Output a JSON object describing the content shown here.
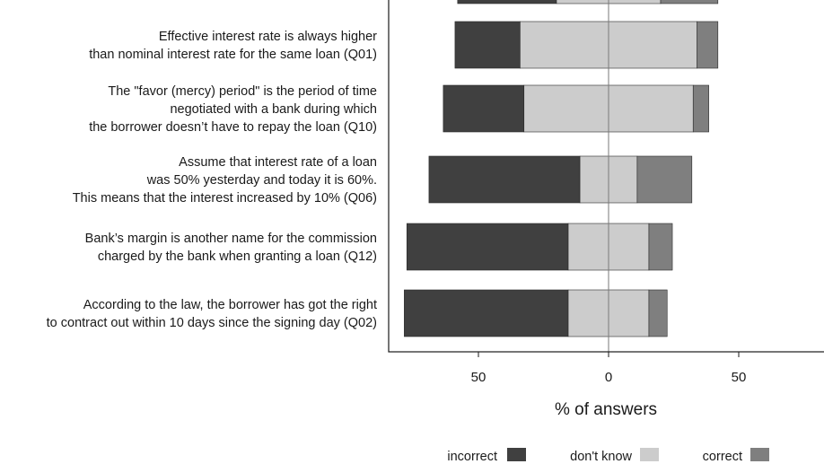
{
  "chart_data": {
    "type": "bar",
    "orientation": "horizontal",
    "stacked": "diverging",
    "xlabel": "% of answers",
    "xticks": [
      50,
      0,
      50
    ],
    "xlim": [
      -85,
      85
    ],
    "grid": false,
    "legend_position": "bottom-right",
    "series_order": [
      "incorrect",
      "dont_know",
      "correct"
    ],
    "series": {
      "incorrect": {
        "name": "incorrect",
        "color": "#404040"
      },
      "dont_know": {
        "name": "don't know",
        "color": "#cccccc"
      },
      "correct": {
        "name": "correct",
        "color": "#7f7f7f"
      }
    },
    "questions": [
      {
        "lines": [],
        "incorrect": 38,
        "dont_know": 40,
        "correct": 22
      },
      {
        "lines": [
          "Effective interest rate is always higher",
          "than nominal interest rate for the same loan (Q01)"
        ],
        "incorrect": 25,
        "dont_know": 68,
        "correct": 8
      },
      {
        "lines": [
          "The \"favor (mercy) period\" is the period of time",
          "negotiated with a bank during which",
          "the borrower doesn’t have to repay the loan (Q10)"
        ],
        "incorrect": 31,
        "dont_know": 65,
        "correct": 6
      },
      {
        "lines": [
          "Assume that interest rate of a loan",
          "was 50% yesterday and today it is 60%.",
          "This means that the interest increased by 10% (Q06)"
        ],
        "incorrect": 58,
        "dont_know": 22,
        "correct": 21
      },
      {
        "lines": [
          "Bank’s margin is another name for the commission",
          "charged by the bank when granting a loan (Q12)"
        ],
        "incorrect": 62,
        "dont_know": 31,
        "correct": 9
      },
      {
        "lines": [
          "According to the law, the borrower has got the right",
          "to contract out within 10 days since the signing day (Q02)"
        ],
        "incorrect": 63,
        "dont_know": 31,
        "correct": 7
      }
    ]
  }
}
